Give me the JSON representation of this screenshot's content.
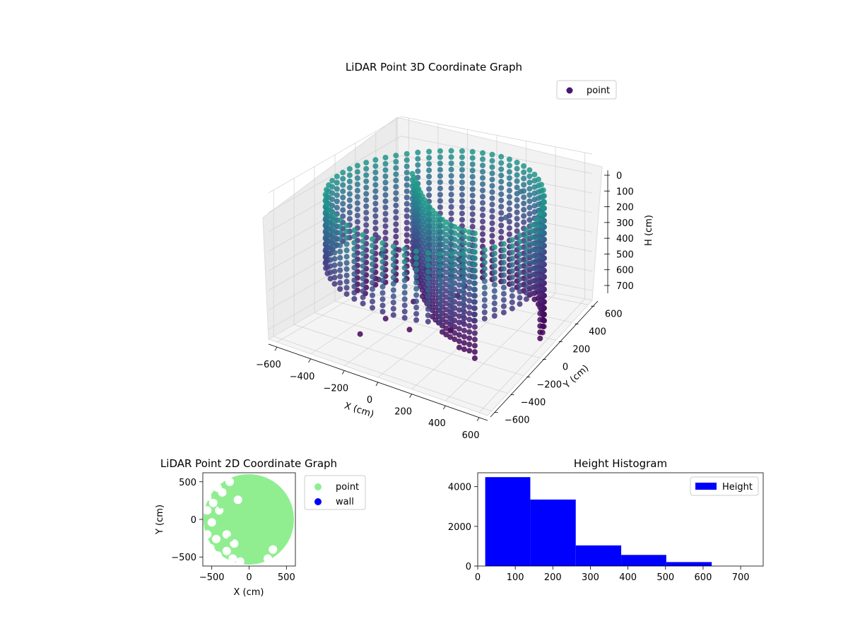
{
  "chart_data": [
    {
      "type": "scatter3d",
      "title": "LiDAR Point 3D Coordinate Graph",
      "xlabel": "X (cm)",
      "ylabel": "Y (cm)",
      "zlabel": "H (cm)",
      "x_ticks": [
        "−600",
        "−400",
        "−200",
        "0",
        "200",
        "400",
        "600"
      ],
      "y_ticks": [
        "−600",
        "−400",
        "−200",
        "0",
        "200",
        "400",
        "600"
      ],
      "z_ticks": [
        "0",
        "100",
        "200",
        "300",
        "400",
        "500",
        "600",
        "700"
      ],
      "xlim": [
        -650,
        650
      ],
      "ylim": [
        -650,
        650
      ],
      "zlim": [
        0,
        750
      ],
      "z_inverted": true,
      "colormap": "viridis",
      "grid": true,
      "legend": {
        "placement": "upper-right",
        "entries": [
          {
            "label": "point",
            "color": "#46186f"
          }
        ]
      },
      "series": [
        {
          "name": "point",
          "shape": "ring-wall-and-curved-partition",
          "ring_radius": 600,
          "ring_center": [
            0,
            0
          ],
          "height_range": [
            0,
            750
          ],
          "partition_x_range": [
            -250,
            380
          ]
        }
      ]
    },
    {
      "type": "scatter",
      "title": "LiDAR Point 2D Coordinate Graph",
      "xlabel": "X (cm)",
      "ylabel": "Y (cm)",
      "x_ticks": [
        "−500",
        "0",
        "500"
      ],
      "y_ticks": [
        "−500",
        "0",
        "500"
      ],
      "xlim": [
        -620,
        620
      ],
      "ylim": [
        -620,
        620
      ],
      "legend": {
        "placement": "outside-right",
        "entries": [
          {
            "label": "point",
            "color": "#90ee90"
          },
          {
            "label": "wall",
            "color": "#0000ff"
          }
        ]
      },
      "series": [
        {
          "name": "point",
          "color": "#90ee90",
          "shape": "filled-disc",
          "center": [
            0,
            0
          ],
          "radius": 600
        },
        {
          "name": "wall",
          "color": "#0000ff",
          "points": []
        }
      ]
    },
    {
      "type": "bar",
      "title": "Height Histogram",
      "x_ticks": [
        "0",
        "100",
        "200",
        "300",
        "400",
        "500",
        "600",
        "700"
      ],
      "y_ticks": [
        "0",
        "2000",
        "4000"
      ],
      "xlim": [
        0,
        760
      ],
      "ylim": [
        0,
        4700
      ],
      "color": "#0000ff",
      "legend": {
        "placement": "upper-right",
        "entries": [
          {
            "label": "Height",
            "color": "#0000ff"
          }
        ]
      },
      "bins": [
        {
          "x0": 20,
          "x1": 140,
          "value": 4480
        },
        {
          "x0": 140,
          "x1": 261,
          "value": 3350
        },
        {
          "x0": 261,
          "x1": 382,
          "value": 1040
        },
        {
          "x0": 382,
          "x1": 502,
          "value": 560
        },
        {
          "x0": 502,
          "x1": 623,
          "value": 200
        },
        {
          "x0": 623,
          "x1": 744,
          "value": 0
        }
      ]
    }
  ]
}
